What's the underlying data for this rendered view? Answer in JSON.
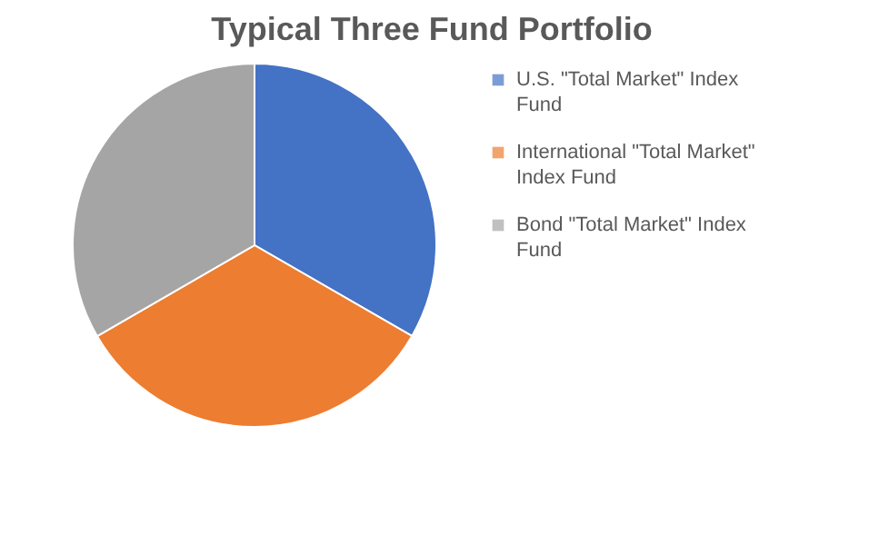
{
  "chart_data": {
    "type": "pie",
    "title": "Typical Three Fund Portfolio",
    "categories": [
      "U.S. \"Total Market\" Index Fund",
      "International \"Total Market\" Index Fund",
      "Bond \"Total Market\" Index Fund"
    ],
    "values": [
      33.33,
      33.33,
      33.34
    ],
    "colors": [
      "#4472c4",
      "#ed7d31",
      "#a5a5a5"
    ],
    "legend": "right"
  }
}
